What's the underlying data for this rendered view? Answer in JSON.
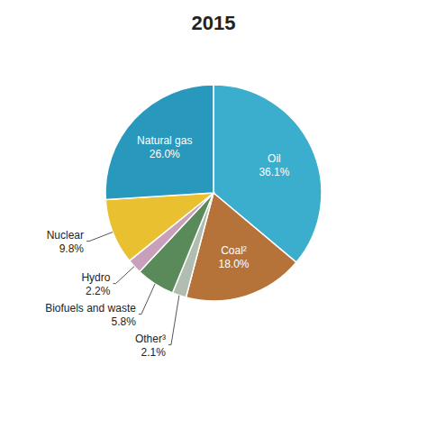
{
  "chart_data": {
    "type": "pie",
    "title": "2015",
    "categories": [
      "Oil",
      "Coal²",
      "Other³",
      "Biofuels and waste",
      "Hydro",
      "Nuclear",
      "Natural gas"
    ],
    "values": [
      36.1,
      18.0,
      2.1,
      5.8,
      2.2,
      9.8,
      26.0
    ],
    "value_labels": [
      "36.1%",
      "18.0%",
      "2.1%",
      "5.8%",
      "2.2%",
      "9.8%",
      "26.0%"
    ],
    "colors": [
      "#3aaecc",
      "#b5733a",
      "#b0bdb0",
      "#5a8a5a",
      "#c8a0bc",
      "#e8c030",
      "#2898bc"
    ],
    "data_labels": true
  }
}
